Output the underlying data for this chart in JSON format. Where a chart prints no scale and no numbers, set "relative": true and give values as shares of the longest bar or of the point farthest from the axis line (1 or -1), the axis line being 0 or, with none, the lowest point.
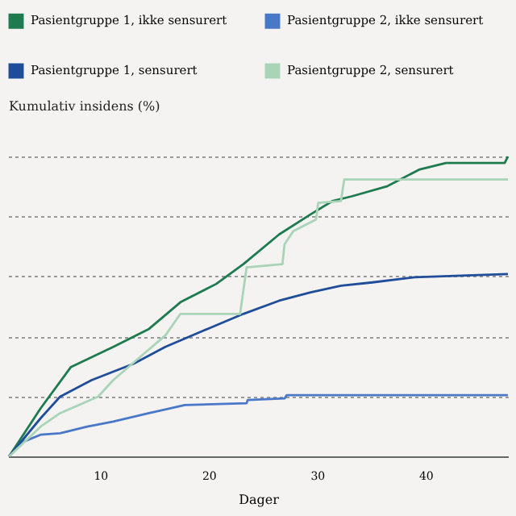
{
  "chart_data": {
    "type": "line",
    "xlabel": "Dager",
    "ylabel": "Kumulativ insidens (%)",
    "relative": true,
    "xlim": [
      1.5,
      47.6
    ],
    "xticks": [
      10,
      20,
      30,
      40
    ],
    "grid": "y",
    "legend": "top",
    "marker": "none",
    "line_style": "solid",
    "series": [
      {
        "name": "Pasientgruppe 1, ikke sensurert",
        "color": "#1e7b4f",
        "x": [
          1.6,
          4.5,
          7.3,
          11.2,
          14.5,
          17.4,
          20.7,
          23.2,
          26.5,
          29.4,
          31.4,
          33.2,
          36.5,
          39.4,
          41.9,
          47.3,
          47.6
        ],
        "values": [
          0,
          0.16,
          0.298,
          0.365,
          0.425,
          0.514,
          0.575,
          0.641,
          0.74,
          0.807,
          0.851,
          0.867,
          0.901,
          0.956,
          0.978,
          0.978,
          1.0
        ]
      },
      {
        "name": "Pasientgruppe 2, ikke sensurert",
        "color": "#4a78c8",
        "x": [
          1.6,
          3.0,
          4.5,
          6.3,
          8.8,
          11.2,
          14.5,
          17.8,
          23.5,
          23.6,
          27.0,
          27.2,
          47.6
        ],
        "values": [
          0,
          0.05,
          0.072,
          0.077,
          0.099,
          0.116,
          0.144,
          0.171,
          0.177,
          0.188,
          0.193,
          0.204,
          0.204
        ]
      },
      {
        "name": "Pasientgruppe 1, sensurert",
        "color": "#1f4d99",
        "x": [
          1.6,
          4.5,
          6.3,
          9.2,
          13.1,
          16.0,
          19.9,
          23.2,
          26.5,
          29.4,
          32.2,
          35.1,
          39.0,
          47.6
        ],
        "values": [
          0,
          0.127,
          0.199,
          0.254,
          0.309,
          0.365,
          0.425,
          0.475,
          0.519,
          0.547,
          0.569,
          0.58,
          0.597,
          0.608
        ]
      },
      {
        "name": "Pasientgruppe 2, sensurert",
        "color": "#a9d4b8",
        "x": [
          1.6,
          4.5,
          6.3,
          9.8,
          11.2,
          13.5,
          16.0,
          17.4,
          22.9,
          23.5,
          26.8,
          27.0,
          27.8,
          29.9,
          30.1,
          32.2,
          32.5,
          47.6
        ],
        "values": [
          0,
          0.099,
          0.144,
          0.199,
          0.254,
          0.326,
          0.403,
          0.475,
          0.475,
          0.63,
          0.641,
          0.707,
          0.751,
          0.79,
          0.845,
          0.851,
          0.923,
          0.923
        ]
      }
    ]
  }
}
